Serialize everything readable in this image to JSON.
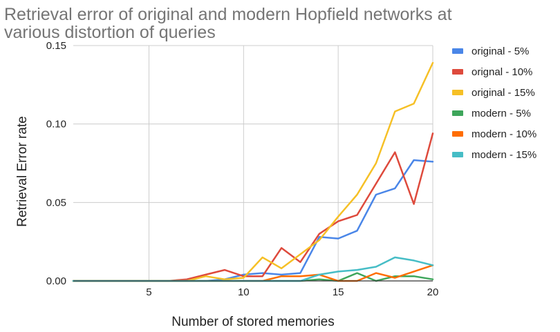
{
  "chart_data": {
    "type": "line",
    "title_lines": [
      "Retrieval error of original and modern Hopfield networks at",
      "various distortion of queries"
    ],
    "xlabel": "Number of stored memories",
    "ylabel": "Retrieval Error rate",
    "xlim": [
      1,
      20
    ],
    "ylim": [
      0,
      0.15
    ],
    "x_ticks": [
      5,
      10,
      15,
      20
    ],
    "x_tick_labels": [
      "5",
      "10",
      "15",
      "20"
    ],
    "y_ticks": [
      0,
      0.05,
      0.1,
      0.15
    ],
    "y_tick_labels": [
      "0.00",
      "0.05",
      "0.10",
      "0.15"
    ],
    "grid": true,
    "legend_position": "right",
    "x": [
      1,
      2,
      3,
      4,
      5,
      6,
      7,
      8,
      9,
      10,
      11,
      12,
      13,
      14,
      15,
      16,
      17,
      18,
      19,
      20
    ],
    "series": [
      {
        "name": "original - 5%",
        "color": "#4a86e8",
        "values": [
          0,
          0,
          0,
          0,
          0,
          0,
          0,
          0,
          0.001,
          0.004,
          0.005,
          0.004,
          0.005,
          0.028,
          0.027,
          0.032,
          0.055,
          0.059,
          0.077,
          0.076
        ]
      },
      {
        "name": "orignal - 10%",
        "color": "#de4a3c",
        "values": [
          0,
          0,
          0,
          0,
          0,
          0,
          0.001,
          0.004,
          0.007,
          0.003,
          0.003,
          0.021,
          0.012,
          0.03,
          0.038,
          0.042,
          0.062,
          0.082,
          0.049,
          0.094
        ]
      },
      {
        "name": "original - 15%",
        "color": "#f6c026",
        "values": [
          0,
          0,
          0,
          0,
          0,
          0,
          0,
          0.003,
          0.001,
          0.002,
          0.015,
          0.008,
          0.017,
          0.026,
          0.041,
          0.055,
          0.075,
          0.108,
          0.113,
          0.139
        ]
      },
      {
        "name": "modern - 5%",
        "color": "#3ea65b",
        "values": [
          0,
          0,
          0,
          0,
          0,
          0,
          0,
          0,
          0,
          0,
          0,
          0,
          0,
          0.001,
          0,
          0.005,
          0,
          0.003,
          0.003,
          0.001
        ]
      },
      {
        "name": "modern - 10%",
        "color": "#ff6d00",
        "values": [
          0,
          0,
          0,
          0,
          0,
          0,
          0,
          0,
          0,
          0,
          0,
          0.003,
          0.003,
          0.004,
          0,
          0,
          0.005,
          0.002,
          0.006,
          0.01
        ]
      },
      {
        "name": "modern - 15%",
        "color": "#46bdc6",
        "values": [
          0,
          0,
          0,
          0,
          0,
          0,
          0,
          0,
          0,
          0,
          0,
          0,
          0,
          0.004,
          0.006,
          0.007,
          0.009,
          0.015,
          0.013,
          0.01
        ]
      }
    ]
  }
}
